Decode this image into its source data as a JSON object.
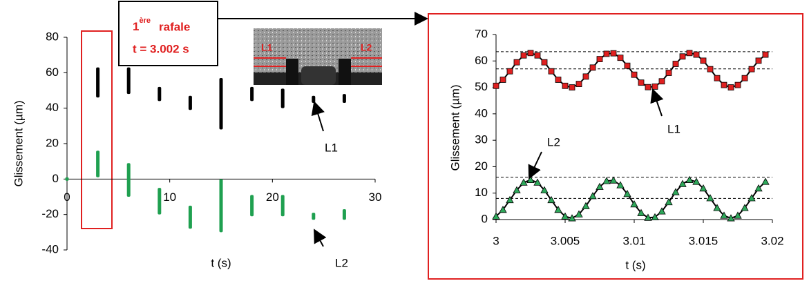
{
  "chart_data": [
    {
      "type": "range",
      "xlabel": "t (s)",
      "ylabel": "Glissement (µm)",
      "xlim": [
        0,
        30
      ],
      "xticks": [
        0,
        10,
        20,
        30
      ],
      "ylim": [
        -40,
        80
      ],
      "yticks": [
        -40,
        -20,
        0,
        20,
        40,
        60,
        80
      ],
      "series": [
        {
          "name": "L1",
          "color": "#000000",
          "x": [
            3,
            6,
            9,
            12,
            15,
            18,
            21,
            24,
            27
          ],
          "low": [
            46,
            48,
            44,
            39,
            28,
            44,
            40,
            43,
            43
          ],
          "high": [
            63,
            63,
            52,
            47,
            57,
            52,
            51,
            47,
            48
          ]
        },
        {
          "name": "L2",
          "color": "#1fa050",
          "x": [
            0,
            3,
            6,
            9,
            12,
            15,
            18,
            21,
            24,
            27
          ],
          "low": [
            -1,
            1,
            -10,
            -20,
            -28,
            -30,
            -21,
            -21,
            -23,
            -23
          ],
          "high": [
            1,
            16,
            9,
            -5,
            -15,
            0,
            -9,
            -9,
            -19,
            -17
          ]
        }
      ]
    },
    {
      "type": "line",
      "xlabel": "t (s)",
      "ylabel": "Glissement (µm)",
      "xlim": [
        3,
        3.02
      ],
      "xticks": [
        3,
        3.005,
        3.01,
        3.015,
        3.02
      ],
      "ylim": [
        0,
        70
      ],
      "yticks": [
        0,
        10,
        20,
        30,
        40,
        50,
        60,
        70
      ],
      "reference_lines": [
        63.5,
        57,
        16,
        8
      ],
      "line_color": "#000000",
      "x": [
        3,
        3.0005,
        3.001,
        3.0015,
        3.002,
        3.0025,
        3.003,
        3.0035,
        3.004,
        3.0045,
        3.005,
        3.0055,
        3.006,
        3.0065,
        3.007,
        3.0075,
        3.008,
        3.0085,
        3.009,
        3.0095,
        3.01,
        3.0105,
        3.011,
        3.0115,
        3.012,
        3.0125,
        3.013,
        3.0135,
        3.014,
        3.0145,
        3.015,
        3.0155,
        3.016,
        3.0165,
        3.017,
        3.0175,
        3.018,
        3.0185,
        3.019,
        3.0195
      ],
      "series": [
        {
          "name": "L1",
          "color": "#e02020",
          "marker": "square",
          "values": [
            50.6,
            52.9,
            56.1,
            59.5,
            62.1,
            63.0,
            62.1,
            59.5,
            56.1,
            52.9,
            50.6,
            50.0,
            51.3,
            54.1,
            57.5,
            60.7,
            62.7,
            62.9,
            61.2,
            58.2,
            54.8,
            51.8,
            50.1,
            50.3,
            52.3,
            55.5,
            58.9,
            61.7,
            63.0,
            62.4,
            60.1,
            56.9,
            53.5,
            50.9,
            50.0,
            50.9,
            53.5,
            56.9,
            60.1,
            62.4
          ]
        },
        {
          "name": "L2",
          "color": "#2ea85a",
          "marker": "triangle",
          "values": [
            1.2,
            3.7,
            7.4,
            11.1,
            14.0,
            15.0,
            14.0,
            11.1,
            7.4,
            3.7,
            1.2,
            0.5,
            2.0,
            5.1,
            8.9,
            12.4,
            14.6,
            14.8,
            13.0,
            9.7,
            5.8,
            2.5,
            0.7,
            0.9,
            3.1,
            6.6,
            10.4,
            13.5,
            15.0,
            14.3,
            11.8,
            8.1,
            4.4,
            1.5,
            0.5,
            1.5,
            4.4,
            8.1,
            11.8,
            14.3
          ]
        }
      ]
    }
  ],
  "callout": {
    "number": "1",
    "superscript": "ère",
    "text": "rafale",
    "time": "t = 3.002 s"
  },
  "inset": {
    "labels": [
      "L1",
      "L2"
    ]
  }
}
